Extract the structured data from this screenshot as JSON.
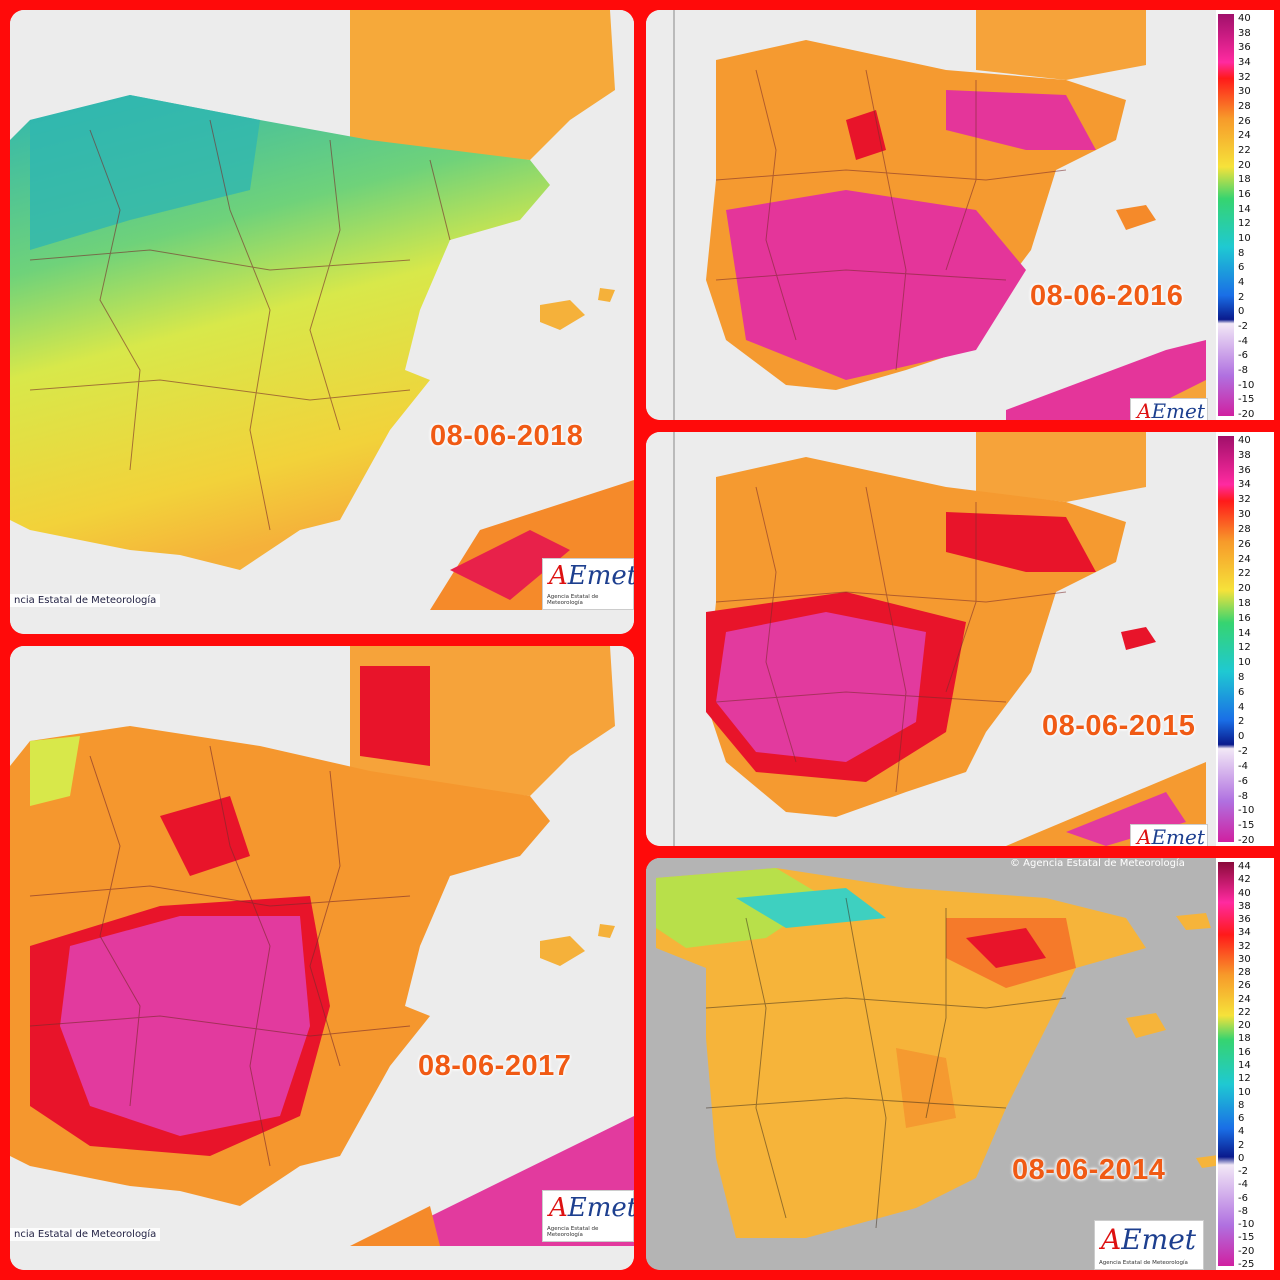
{
  "panels": [
    {
      "id": "p2018",
      "date": "08-06-2018",
      "credit": "ncia Estatal de Meteorología",
      "logo": "AEmet",
      "logo_sub": "Agencia Estatal de Meteorología",
      "palette": "cool"
    },
    {
      "id": "p2016",
      "date": "08-06-2016",
      "logo": "AEmet",
      "palette": "hot"
    },
    {
      "id": "p2017",
      "date": "08-06-2017",
      "credit": "ncia Estatal de Meteorología",
      "logo": "AEmet",
      "logo_sub": "Agencia Estatal de Meteorología",
      "palette": "hot"
    },
    {
      "id": "p2015",
      "date": "08-06-2015",
      "logo": "AEmet",
      "palette": "warm"
    },
    {
      "id": "p2014",
      "date": "08-06-2014",
      "credit": "© Agencia Estatal de Meteorología",
      "logo": "AEmet",
      "logo_sub": "Agencia Estatal de Meteorología",
      "palette": "mild"
    }
  ],
  "legend_top": {
    "labels": [
      "40",
      "38",
      "36",
      "34",
      "32",
      "30",
      "28",
      "26",
      "24",
      "22",
      "20",
      "18",
      "16",
      "14",
      "12",
      "10",
      "8",
      "6",
      "4",
      "2",
      "0",
      "-2",
      "-4",
      "-6",
      "-8",
      "-10",
      "-15",
      "-20"
    ]
  },
  "legend_bottom": {
    "labels": [
      "44",
      "42",
      "40",
      "38",
      "36",
      "34",
      "32",
      "30",
      "28",
      "26",
      "24",
      "22",
      "20",
      "18",
      "16",
      "14",
      "12",
      "10",
      "8",
      "6",
      "4",
      "2",
      "0",
      "-2",
      "-4",
      "-6",
      "-8",
      "-10",
      "-15",
      "-20",
      "-25"
    ]
  },
  "colors": {
    "frame": "#ff0a0a",
    "sea": "#ececec",
    "date_text": "#f05a14",
    "aemet_blue": "#1d3f8f",
    "aemet_red": "#dd1111"
  }
}
